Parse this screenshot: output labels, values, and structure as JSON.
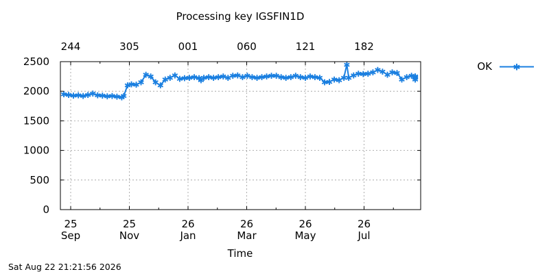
{
  "chart_data": {
    "type": "line",
    "title": "Processing key IGSFIN1D",
    "xlabel": "Time",
    "ylabel": "",
    "ylim": [
      0,
      2500
    ],
    "y_ticks": [
      0,
      500,
      1000,
      1500,
      2000,
      2500
    ],
    "grid": true,
    "legend_position": "right",
    "x_ticks_bottom": [
      {
        "day": "25",
        "month": "Sep"
      },
      {
        "day": "25",
        "month": "Nov"
      },
      {
        "day": "26",
        "month": "Jan"
      },
      {
        "day": "26",
        "month": "Mar"
      },
      {
        "day": "26",
        "month": "May"
      },
      {
        "day": "26",
        "month": "Jul"
      }
    ],
    "x_ticks_top": [
      "244",
      "305",
      "001",
      "060",
      "121",
      "182"
    ],
    "series": [
      {
        "name": "OK",
        "color": "#1a7fe0",
        "marker": "star",
        "points": [
          [
            0,
            1950
          ],
          [
            5,
            1940
          ],
          [
            10,
            1925
          ],
          [
            15,
            1930
          ],
          [
            20,
            1920
          ],
          [
            25,
            1940
          ],
          [
            30,
            1960
          ],
          [
            35,
            1930
          ],
          [
            40,
            1925
          ],
          [
            45,
            1915
          ],
          [
            50,
            1920
          ],
          [
            55,
            1910
          ],
          [
            60,
            1900
          ],
          [
            62,
            1920
          ],
          [
            66,
            2100
          ],
          [
            70,
            2120
          ],
          [
            75,
            2110
          ],
          [
            80,
            2150
          ],
          [
            85,
            2280
          ],
          [
            90,
            2250
          ],
          [
            95,
            2150
          ],
          [
            100,
            2100
          ],
          [
            105,
            2200
          ],
          [
            110,
            2230
          ],
          [
            115,
            2270
          ],
          [
            120,
            2210
          ],
          [
            125,
            2220
          ],
          [
            130,
            2230
          ],
          [
            135,
            2240
          ],
          [
            140,
            2220
          ],
          [
            142,
            2190
          ],
          [
            145,
            2230
          ],
          [
            150,
            2240
          ],
          [
            155,
            2230
          ],
          [
            160,
            2240
          ],
          [
            165,
            2250
          ],
          [
            170,
            2230
          ],
          [
            175,
            2260
          ],
          [
            180,
            2270
          ],
          [
            185,
            2240
          ],
          [
            190,
            2260
          ],
          [
            195,
            2240
          ],
          [
            200,
            2230
          ],
          [
            205,
            2240
          ],
          [
            210,
            2250
          ],
          [
            215,
            2260
          ],
          [
            220,
            2260
          ],
          [
            225,
            2240
          ],
          [
            230,
            2230
          ],
          [
            235,
            2240
          ],
          [
            240,
            2260
          ],
          [
            245,
            2240
          ],
          [
            250,
            2230
          ],
          [
            255,
            2250
          ],
          [
            260,
            2240
          ],
          [
            265,
            2230
          ],
          [
            270,
            2150
          ],
          [
            275,
            2160
          ],
          [
            280,
            2200
          ],
          [
            285,
            2190
          ],
          [
            290,
            2230
          ],
          [
            293,
            2450
          ],
          [
            295,
            2230
          ],
          [
            300,
            2270
          ],
          [
            305,
            2300
          ],
          [
            310,
            2290
          ],
          [
            315,
            2300
          ],
          [
            320,
            2320
          ],
          [
            325,
            2360
          ],
          [
            330,
            2330
          ],
          [
            335,
            2280
          ],
          [
            340,
            2320
          ],
          [
            345,
            2310
          ],
          [
            350,
            2200
          ],
          [
            355,
            2240
          ],
          [
            360,
            2260
          ],
          [
            365,
            2250
          ],
          [
            370,
            2240
          ],
          [
            375,
            2230
          ],
          [
            380,
            2250
          ],
          [
            385,
            2240
          ],
          [
            390,
            2200
          ]
        ]
      }
    ]
  },
  "footer": {
    "timestamp": "Sat Aug 22 21:21:56 2026"
  }
}
